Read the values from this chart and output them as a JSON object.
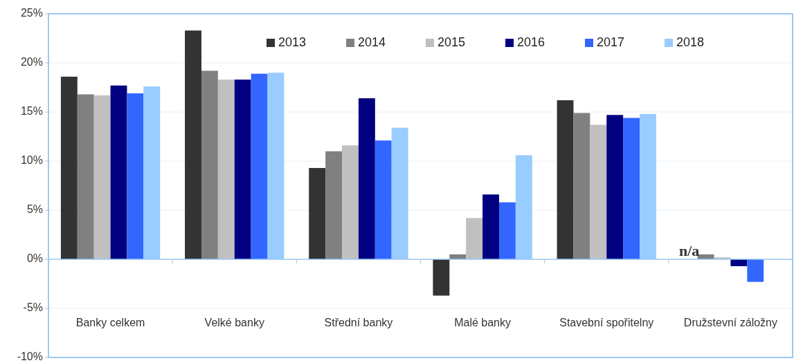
{
  "chart_data": {
    "type": "bar",
    "categories": [
      "Banky celkem",
      "Velké banky",
      "Střední banky",
      "Malé banky",
      "Stavební spořitelny",
      "Družstevní záložny"
    ],
    "series": [
      {
        "name": "2013",
        "color": "#333333",
        "values": [
          18.6,
          23.3,
          9.3,
          -3.7,
          16.2,
          null
        ]
      },
      {
        "name": "2014",
        "color": "#808080",
        "values": [
          16.8,
          19.2,
          11.0,
          0.5,
          14.9,
          0.5
        ]
      },
      {
        "name": "2015",
        "color": "#c0c0c0",
        "values": [
          16.7,
          18.3,
          11.6,
          4.2,
          13.7,
          0.2
        ]
      },
      {
        "name": "2016",
        "color": "#000080",
        "values": [
          17.7,
          18.3,
          16.4,
          6.6,
          14.7,
          -0.7
        ]
      },
      {
        "name": "2017",
        "color": "#3366ff",
        "values": [
          16.9,
          18.9,
          12.1,
          5.8,
          14.4,
          -2.3
        ]
      },
      {
        "name": "2018",
        "color": "#99ccff",
        "values": [
          17.6,
          19.0,
          13.4,
          10.6,
          14.8,
          0
        ]
      }
    ],
    "ylim": [
      -10,
      25
    ],
    "yticks": [
      {
        "value": -10,
        "label": "-10%"
      },
      {
        "value": -5,
        "label": "-5%"
      },
      {
        "value": 0,
        "label": "0%"
      },
      {
        "value": 5,
        "label": "5%"
      },
      {
        "value": 10,
        "label": "10%"
      },
      {
        "value": 15,
        "label": "15%"
      },
      {
        "value": 20,
        "label": "20%"
      },
      {
        "value": 25,
        "label": "25%"
      }
    ],
    "grid": "y",
    "legend": "top",
    "ref_lines": [
      {
        "axis": "y",
        "value": 0,
        "color": "#9cc8f0"
      }
    ],
    "annotations": [
      {
        "text": "n/a",
        "x": "Družstevní záložny",
        "y": 0
      }
    ]
  }
}
